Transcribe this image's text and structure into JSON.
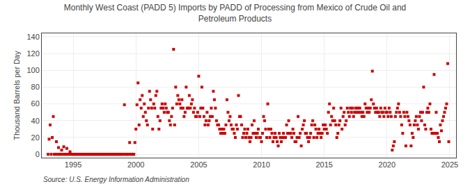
{
  "chart_data": {
    "type": "scatter",
    "title": "Monthly West Coast (PADD 5) Imports by PADD of Processing from Mexico of Crude Oil and\nPetroleum Products",
    "ylabel": "Thousand Barrels per Day",
    "annotations": [
      "Source: U.S. Energy Information Administration"
    ],
    "xlim": [
      1992.5,
      2025.5
    ],
    "ylim": [
      -4,
      144
    ],
    "xticks": [
      1995,
      2000,
      2005,
      2010,
      2015,
      2020,
      2025
    ],
    "yticks": [
      0,
      20,
      40,
      60,
      80,
      100,
      120,
      140
    ],
    "color": "#cc0000",
    "marker": "square",
    "grid": true,
    "x": [
      1993.0,
      1993.083,
      1993.167,
      1993.25,
      1993.333,
      1993.417,
      1993.5,
      1993.583,
      1993.667,
      1993.75,
      1993.833,
      1993.917,
      1994.0,
      1994.083,
      1994.167,
      1994.25,
      1994.333,
      1994.417,
      1994.5,
      1994.583,
      1994.667,
      1994.75,
      1994.833,
      1994.917,
      1995.0,
      1995.083,
      1995.167,
      1995.25,
      1995.333,
      1995.417,
      1995.5,
      1995.583,
      1995.667,
      1995.75,
      1995.833,
      1995.917,
      1996.0,
      1996.083,
      1996.167,
      1996.25,
      1996.333,
      1996.417,
      1996.5,
      1996.583,
      1996.667,
      1996.75,
      1996.833,
      1996.917,
      1997.0,
      1997.083,
      1997.167,
      1997.25,
      1997.333,
      1997.417,
      1997.5,
      1997.583,
      1997.667,
      1997.75,
      1997.833,
      1997.917,
      1998.0,
      1998.083,
      1998.167,
      1998.25,
      1998.333,
      1998.417,
      1998.5,
      1998.583,
      1998.667,
      1998.75,
      1998.833,
      1998.917,
      1999.0,
      1999.083,
      1999.167,
      1999.25,
      1999.333,
      1999.417,
      1999.5,
      1999.583,
      1999.667,
      1999.75,
      1999.833,
      1999.917,
      2000.0,
      2000.083,
      2000.167,
      2000.25,
      2000.333,
      2000.417,
      2000.5,
      2000.583,
      2000.667,
      2000.75,
      2000.833,
      2000.917,
      2001.0,
      2001.083,
      2001.167,
      2001.25,
      2001.333,
      2001.417,
      2001.5,
      2001.583,
      2001.667,
      2001.75,
      2001.833,
      2001.917,
      2002.0,
      2002.083,
      2002.167,
      2002.25,
      2002.333,
      2002.417,
      2002.5,
      2002.583,
      2002.667,
      2002.75,
      2002.833,
      2002.917,
      2003.0,
      2003.083,
      2003.167,
      2003.25,
      2003.333,
      2003.417,
      2003.5,
      2003.583,
      2003.667,
      2003.75,
      2003.833,
      2003.917,
      2004.0,
      2004.083,
      2004.167,
      2004.25,
      2004.333,
      2004.417,
      2004.5,
      2004.583,
      2004.667,
      2004.75,
      2004.833,
      2004.917,
      2005.0,
      2005.083,
      2005.167,
      2005.25,
      2005.333,
      2005.417,
      2005.5,
      2005.583,
      2005.667,
      2005.75,
      2005.833,
      2005.917,
      2006.0,
      2006.083,
      2006.167,
      2006.25,
      2006.333,
      2006.417,
      2006.5,
      2006.583,
      2006.667,
      2006.75,
      2006.833,
      2006.917,
      2007.0,
      2007.083,
      2007.167,
      2007.25,
      2007.333,
      2007.417,
      2007.5,
      2007.583,
      2007.667,
      2007.75,
      2007.833,
      2007.917,
      2008.0,
      2008.083,
      2008.167,
      2008.25,
      2008.333,
      2008.417,
      2008.5,
      2008.583,
      2008.667,
      2008.75,
      2008.833,
      2008.917,
      2009.0,
      2009.083,
      2009.167,
      2009.25,
      2009.333,
      2009.417,
      2009.5,
      2009.583,
      2009.667,
      2009.75,
      2009.833,
      2009.917,
      2010.0,
      2010.083,
      2010.167,
      2010.25,
      2010.333,
      2010.417,
      2010.5,
      2010.583,
      2010.667,
      2010.75,
      2010.833,
      2010.917,
      2011.0,
      2011.083,
      2011.167,
      2011.25,
      2011.333,
      2011.417,
      2011.5,
      2011.583,
      2011.667,
      2011.75,
      2011.833,
      2011.917,
      2012.0,
      2012.083,
      2012.167,
      2012.25,
      2012.333,
      2012.417,
      2012.5,
      2012.583,
      2012.667,
      2012.75,
      2012.833,
      2012.917,
      2013.0,
      2013.083,
      2013.167,
      2013.25,
      2013.333,
      2013.417,
      2013.5,
      2013.583,
      2013.667,
      2013.75,
      2013.833,
      2013.917,
      2014.0,
      2014.083,
      2014.167,
      2014.25,
      2014.333,
      2014.417,
      2014.5,
      2014.583,
      2014.667,
      2014.75,
      2014.833,
      2014.917,
      2015.0,
      2015.083,
      2015.167,
      2015.25,
      2015.333,
      2015.417,
      2015.5,
      2015.583,
      2015.667,
      2015.75,
      2015.833,
      2015.917,
      2016.0,
      2016.083,
      2016.167,
      2016.25,
      2016.333,
      2016.417,
      2016.5,
      2016.583,
      2016.667,
      2016.75,
      2016.833,
      2016.917,
      2017.0,
      2017.083,
      2017.167,
      2017.25,
      2017.333,
      2017.417,
      2017.5,
      2017.583,
      2017.667,
      2017.75,
      2017.833,
      2017.917,
      2018.0,
      2018.083,
      2018.167,
      2018.25,
      2018.333,
      2018.417,
      2018.5,
      2018.583,
      2018.667,
      2018.75,
      2018.833,
      2018.917,
      2019.0,
      2019.083,
      2019.167,
      2019.25,
      2019.333,
      2019.417,
      2019.5,
      2019.583,
      2019.667,
      2019.75,
      2019.833,
      2019.917,
      2020.0,
      2020.083,
      2020.167,
      2020.25,
      2020.333,
      2020.417,
      2020.5,
      2020.583,
      2020.667,
      2020.75,
      2020.833,
      2020.917,
      2021.0,
      2021.083,
      2021.167,
      2021.25,
      2021.333,
      2021.417,
      2021.5,
      2021.583,
      2021.667,
      2021.75,
      2021.833,
      2021.917,
      2022.0,
      2022.083,
      2022.167,
      2022.25,
      2022.333,
      2022.417,
      2022.5,
      2022.583,
      2022.667,
      2022.75,
      2022.833,
      2022.917,
      2023.0,
      2023.083,
      2023.167,
      2023.25,
      2023.333,
      2023.417,
      2023.5,
      2023.583,
      2023.667,
      2023.75,
      2023.833,
      2023.917,
      2024.0,
      2024.083,
      2024.167,
      2024.25,
      2024.333,
      2024.417,
      2024.5,
      2024.583,
      2024.667,
      2024.75,
      2024.833,
      2024.917
    ],
    "values": [
      0,
      18,
      35,
      0,
      20,
      45,
      0,
      0,
      15,
      0,
      8,
      0,
      0,
      5,
      0,
      9,
      0,
      0,
      7,
      0,
      0,
      3,
      0,
      0,
      0,
      0,
      0,
      0,
      0,
      0,
      0,
      0,
      0,
      0,
      0,
      0,
      0,
      0,
      0,
      0,
      0,
      0,
      0,
      0,
      0,
      0,
      0,
      0,
      0,
      0,
      0,
      0,
      0,
      0,
      0,
      0,
      0,
      0,
      0,
      0,
      0,
      0,
      0,
      0,
      0,
      0,
      0,
      0,
      0,
      0,
      0,
      0,
      0,
      59,
      0,
      0,
      0,
      0,
      14,
      0,
      0,
      0,
      0,
      14,
      30,
      59,
      85,
      35,
      65,
      55,
      70,
      45,
      60,
      50,
      40,
      35,
      55,
      75,
      65,
      55,
      30,
      60,
      55,
      70,
      75,
      45,
      30,
      40,
      55,
      60,
      55,
      50,
      60,
      55,
      50,
      50,
      40,
      35,
      45,
      55,
      125,
      35,
      80,
      60,
      70,
      65,
      60,
      55,
      65,
      55,
      45,
      50,
      80,
      55,
      55,
      70,
      55,
      60,
      65,
      50,
      55,
      45,
      45,
      50,
      93,
      45,
      55,
      80,
      55,
      45,
      35,
      40,
      50,
      35,
      40,
      45,
      55,
      45,
      75,
      65,
      55,
      40,
      35,
      35,
      30,
      25,
      30,
      25,
      30,
      25,
      35,
      65,
      50,
      40,
      45,
      35,
      30,
      30,
      25,
      20,
      35,
      30,
      70,
      45,
      45,
      35,
      20,
      25,
      30,
      20,
      25,
      30,
      20,
      15,
      20,
      35,
      25,
      40,
      25,
      20,
      25,
      30,
      20,
      20,
      15,
      25,
      45,
      40,
      30,
      20,
      60,
      30,
      20,
      30,
      25,
      15,
      20,
      25,
      20,
      15,
      10,
      25,
      20,
      15,
      20,
      25,
      20,
      20,
      35,
      25,
      40,
      25,
      25,
      20,
      30,
      25,
      15,
      15,
      20,
      45,
      20,
      25,
      10,
      30,
      35,
      40,
      25,
      25,
      20,
      15,
      20,
      25,
      35,
      40,
      20,
      35,
      30,
      20,
      25,
      30,
      25,
      20,
      25,
      35,
      30,
      35,
      30,
      25,
      50,
      60,
      35,
      45,
      40,
      55,
      40,
      35,
      20,
      25,
      35,
      40,
      55,
      30,
      45,
      50,
      35,
      40,
      55,
      50,
      45,
      55,
      50,
      55,
      45,
      50,
      55,
      50,
      55,
      50,
      55,
      50,
      45,
      50,
      45,
      60,
      55,
      50,
      55,
      50,
      55,
      65,
      99,
      60,
      55,
      50,
      55,
      50,
      50,
      45,
      55,
      50,
      50,
      45,
      55,
      50,
      50,
      45,
      55,
      50,
      45,
      5,
      10,
      15,
      45,
      50,
      55,
      60,
      50,
      45,
      35,
      25,
      50,
      45,
      10,
      50,
      45,
      40,
      35,
      10,
      25,
      20,
      35,
      40,
      45,
      35,
      30,
      45,
      50,
      40,
      50,
      80,
      35,
      30,
      50,
      55,
      50,
      60,
      30,
      25,
      25,
      95,
      25,
      50,
      25,
      20,
      15,
      35,
      28,
      40,
      45,
      50,
      55,
      60,
      108,
      15
    ]
  }
}
